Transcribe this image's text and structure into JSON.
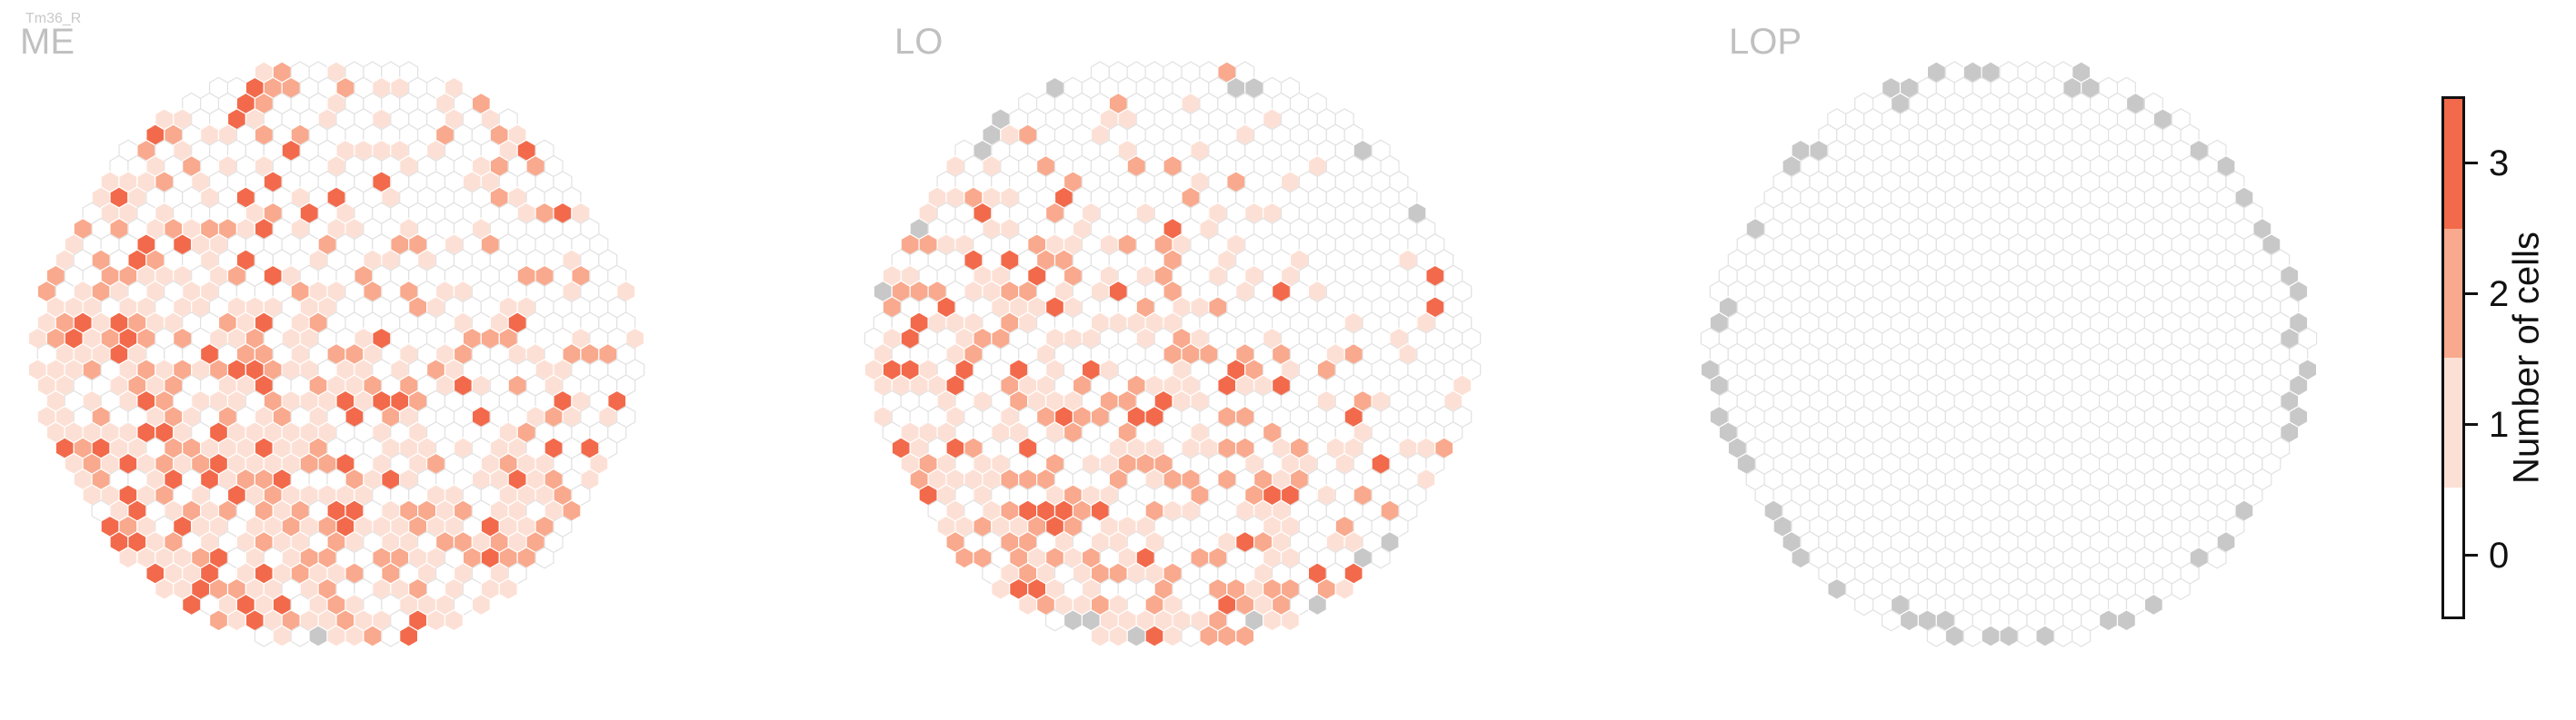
{
  "cell_type_label": "Tm36_R",
  "chart_data": {
    "type": "heatmap",
    "subtype": "hexagonal column map",
    "panels": [
      {
        "title": "ME"
      },
      {
        "title": "LO"
      },
      {
        "title": "LOP"
      }
    ],
    "colorbar": {
      "label": "Number of cells",
      "ticks": [
        0,
        1,
        2,
        3
      ],
      "range": [
        0,
        3
      ],
      "colors": {
        "0": "#ffffff",
        "1": "#fde0d5",
        "2": "#f9a98d",
        "3": "#f26a4b"
      }
    },
    "colors": {
      "empty_hex_edge": "#e2e2e2",
      "hex_edge": "#ffffff",
      "missing_column": "#c8c8c8"
    }
  }
}
